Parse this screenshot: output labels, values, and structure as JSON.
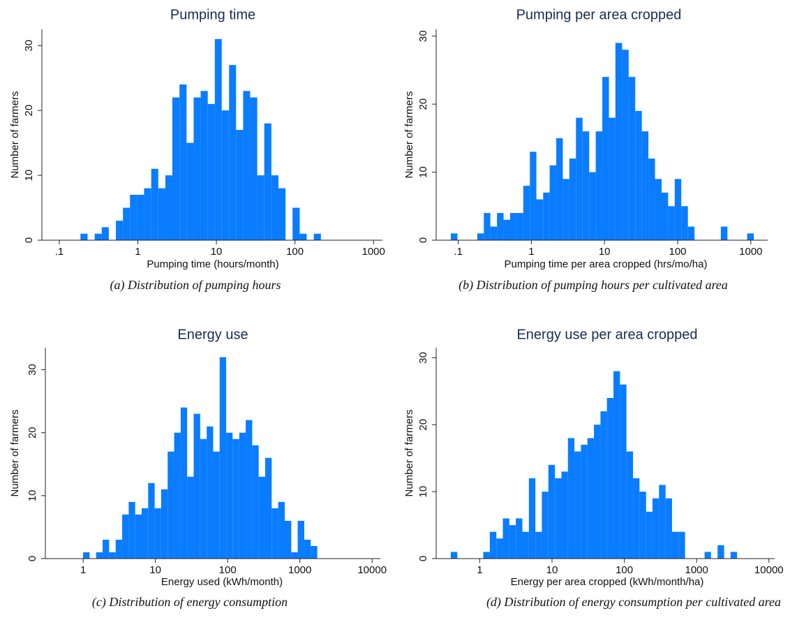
{
  "chart_data": [
    {
      "type": "histogram",
      "title": "Pumping time",
      "x_label": "Pumping time (hours/month)",
      "y_label": "Number of farmers",
      "caption": "(a) Distribution of pumping hours",
      "xscale": "log",
      "color": "#0a7cff",
      "bins": [
        0.186,
        0.229,
        0.282,
        0.347,
        0.427,
        0.525,
        0.646,
        0.794,
        0.977,
        1.2,
        1.48,
        1.82,
        2.24,
        2.75,
        3.39,
        4.17,
        5.13,
        6.31,
        7.76,
        9.55,
        11.7,
        14.5,
        17.8,
        21.9,
        26.9,
        33.1,
        40.7,
        50.1,
        61.7,
        75.9,
        93.3,
        115,
        141,
        174,
        214,
        263
      ],
      "counts": [
        1,
        0,
        1,
        2,
        0,
        3,
        5,
        7,
        7,
        8,
        11,
        8,
        10,
        22,
        24,
        15,
        22,
        23,
        21,
        31,
        20,
        27,
        17,
        23,
        22,
        10,
        18,
        10,
        8,
        0,
        5,
        1,
        0,
        1,
        0
      ],
      "xlim": [
        0.06,
        1300
      ],
      "ylim": [
        0,
        32.5
      ],
      "xticks": [
        {
          "value": 0.1,
          "label": ".1"
        },
        1,
        10,
        100,
        1000
      ],
      "yticks": [
        0,
        10,
        20,
        30
      ]
    },
    {
      "type": "histogram",
      "title": "Pumping per area cropped",
      "x_label": "Pumping time per area cropped (hrs/mo/ha)",
      "y_label": "Number of farmers",
      "caption": "(b) Distribution of pumping hours per cultivated area",
      "xscale": "log",
      "color": "#0a7cff",
      "bins": [
        0.0794,
        0.0977,
        0.12,
        0.148,
        0.182,
        0.224,
        0.275,
        0.339,
        0.417,
        0.513,
        0.631,
        0.776,
        0.955,
        1.17,
        1.45,
        1.78,
        2.19,
        2.69,
        3.31,
        4.07,
        5.01,
        6.17,
        7.59,
        9.33,
        11.5,
        14.1,
        17.4,
        21.4,
        26.3,
        32.4,
        39.8,
        49,
        60.3,
        74.1,
        91.2,
        112,
        138,
        170,
        209,
        257,
        316,
        389,
        479,
        589,
        724,
        891,
        1100
      ],
      "counts": [
        1,
        0,
        0,
        0,
        1,
        4,
        2,
        4,
        3,
        4,
        4,
        8,
        13,
        6,
        7,
        11,
        15,
        9,
        12,
        18,
        16,
        10,
        16,
        24,
        18,
        29,
        28,
        24,
        19,
        16,
        12,
        9,
        7,
        5,
        9,
        5,
        2,
        0,
        0,
        0,
        0,
        2,
        0,
        0,
        0,
        1
      ],
      "xlim": [
        0.05,
        1700
      ],
      "ylim": [
        0,
        31
      ],
      "xticks": [
        {
          "value": 0.1,
          "label": ".1"
        },
        1,
        10,
        100,
        1000
      ],
      "yticks": [
        0,
        10,
        20,
        30
      ]
    },
    {
      "type": "histogram",
      "title": "Energy use",
      "x_label": "Energy used (kWh/month)",
      "y_label": "Number of farmers",
      "caption": "(c) Distribution of energy consumption",
      "xscale": "log",
      "color": "#0a7cff",
      "bins": [
        1,
        1.23,
        1.51,
        1.86,
        2.29,
        2.82,
        3.47,
        4.27,
        5.25,
        6.46,
        7.94,
        9.77,
        12,
        14.8,
        18.2,
        22.4,
        27.5,
        33.9,
        41.7,
        51.3,
        63.1,
        77.6,
        95.5,
        117,
        145,
        178,
        219,
        269,
        331,
        407,
        501,
        617,
        759,
        933,
        1150,
        1410,
        1740
      ],
      "counts": [
        1,
        0,
        1,
        3,
        1,
        3,
        7,
        9,
        7,
        8,
        12,
        8,
        11,
        17,
        20,
        24,
        13,
        23,
        19,
        21,
        17,
        32,
        20,
        19,
        20,
        22,
        18,
        13,
        16,
        8,
        9,
        6,
        1,
        6,
        3,
        2
      ],
      "xlim": [
        0.3,
        13000
      ],
      "ylim": [
        0,
        33.5
      ],
      "xticks": [
        1,
        10,
        100,
        1000,
        10000
      ],
      "yticks": [
        0,
        10,
        20,
        30
      ]
    },
    {
      "type": "histogram",
      "title": "Energy use per area cropped",
      "x_label": "Energy per area cropped (kWh/month/ha)",
      "y_label": "Number of farmers",
      "caption": "(d) Distribution of energy consumption per cultivated area",
      "xscale": "log",
      "color": "#0a7cff",
      "bins": [
        0.398,
        0.49,
        0.603,
        0.741,
        0.912,
        1.12,
        1.38,
        1.7,
        2.09,
        2.57,
        3.16,
        3.89,
        4.79,
        5.89,
        7.24,
        8.91,
        11,
        13.5,
        16.6,
        20.4,
        25.1,
        30.9,
        38,
        46.8,
        57.5,
        70.8,
        87.1,
        107,
        132,
        162,
        200,
        245,
        302,
        372,
        457,
        562,
        692,
        851,
        1050,
        1290,
        1580,
        1950,
        2400,
        2950,
        3630,
        4470
      ],
      "counts": [
        1,
        0,
        0,
        0,
        0,
        1,
        4,
        3,
        6,
        5,
        6,
        4,
        12,
        4,
        10,
        14,
        12,
        13,
        18,
        16,
        17,
        18,
        20,
        22,
        24,
        28,
        26,
        16,
        12,
        10,
        7,
        9,
        11,
        9,
        4,
        4,
        0,
        0,
        0,
        1,
        0,
        2,
        0,
        1,
        0
      ],
      "xlim": [
        0.25,
        12000
      ],
      "ylim": [
        0,
        31.5
      ],
      "xticks": [
        1,
        10,
        100,
        1000,
        10000
      ],
      "yticks": [
        0,
        10,
        20,
        30
      ]
    }
  ]
}
